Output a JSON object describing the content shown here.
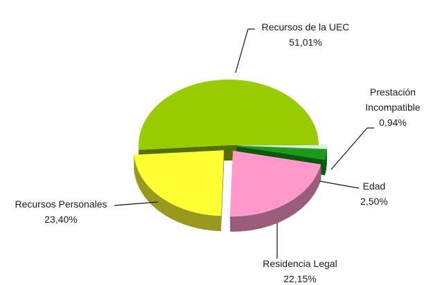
{
  "chart_data": {
    "type": "pie",
    "categories": [
      "Recursos de la UEC",
      "Prestación Incompatible",
      "Edad",
      "Residencia Legal",
      "Recursos Personales"
    ],
    "values": [
      51.01,
      0.94,
      2.5,
      22.15,
      23.4
    ],
    "value_labels": [
      "51,01%",
      "0,94%",
      "2,50%",
      "22,15%",
      "23,40%"
    ],
    "colors": [
      "#99cc00",
      "#ccffcc",
      "#1a9a1a",
      "#ff99cc",
      "#ffff33"
    ]
  }
}
